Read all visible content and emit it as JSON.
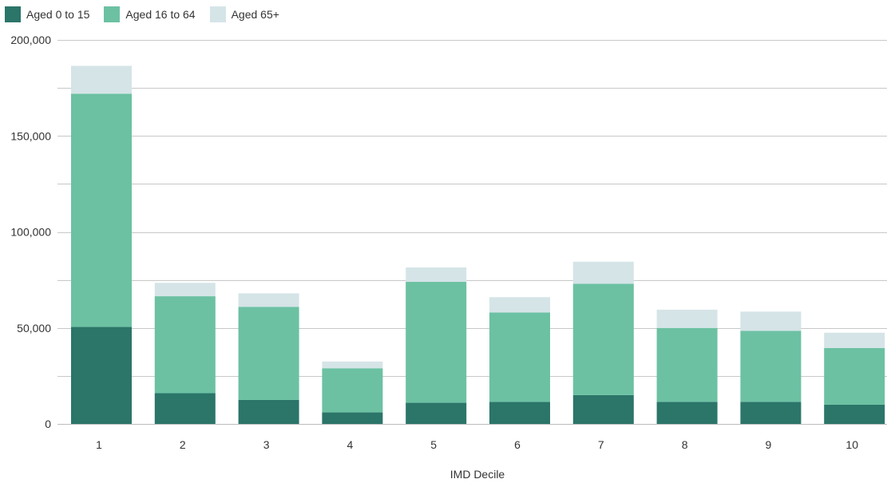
{
  "chart_data": {
    "type": "bar",
    "stacked": true,
    "title": "",
    "xlabel": "IMD Decile",
    "ylabel": "",
    "categories": [
      "1",
      "2",
      "3",
      "4",
      "5",
      "6",
      "7",
      "8",
      "9",
      "10"
    ],
    "ylim": [
      0,
      200000
    ],
    "yticks": [
      0,
      50000,
      100000,
      150000,
      200000
    ],
    "ytick_labels": [
      "0",
      "50,000",
      "100,000",
      "150,000",
      "200,000"
    ],
    "grid": true,
    "legend_position": "top-left",
    "series": [
      {
        "name": "Aged 0 to 15",
        "color": "#2b7569",
        "values": [
          50500,
          16000,
          12500,
          6000,
          11000,
          11500,
          15000,
          11500,
          11500,
          10000
        ]
      },
      {
        "name": "Aged 16 to 64",
        "color": "#6cc1a3",
        "values": [
          121500,
          50500,
          48500,
          23000,
          63000,
          46500,
          58000,
          38500,
          37000,
          29500
        ]
      },
      {
        "name": "Aged 65+",
        "color": "#d5e4e7",
        "values": [
          14500,
          7000,
          7000,
          3500,
          7500,
          8000,
          11500,
          9500,
          10000,
          8000
        ]
      }
    ]
  }
}
